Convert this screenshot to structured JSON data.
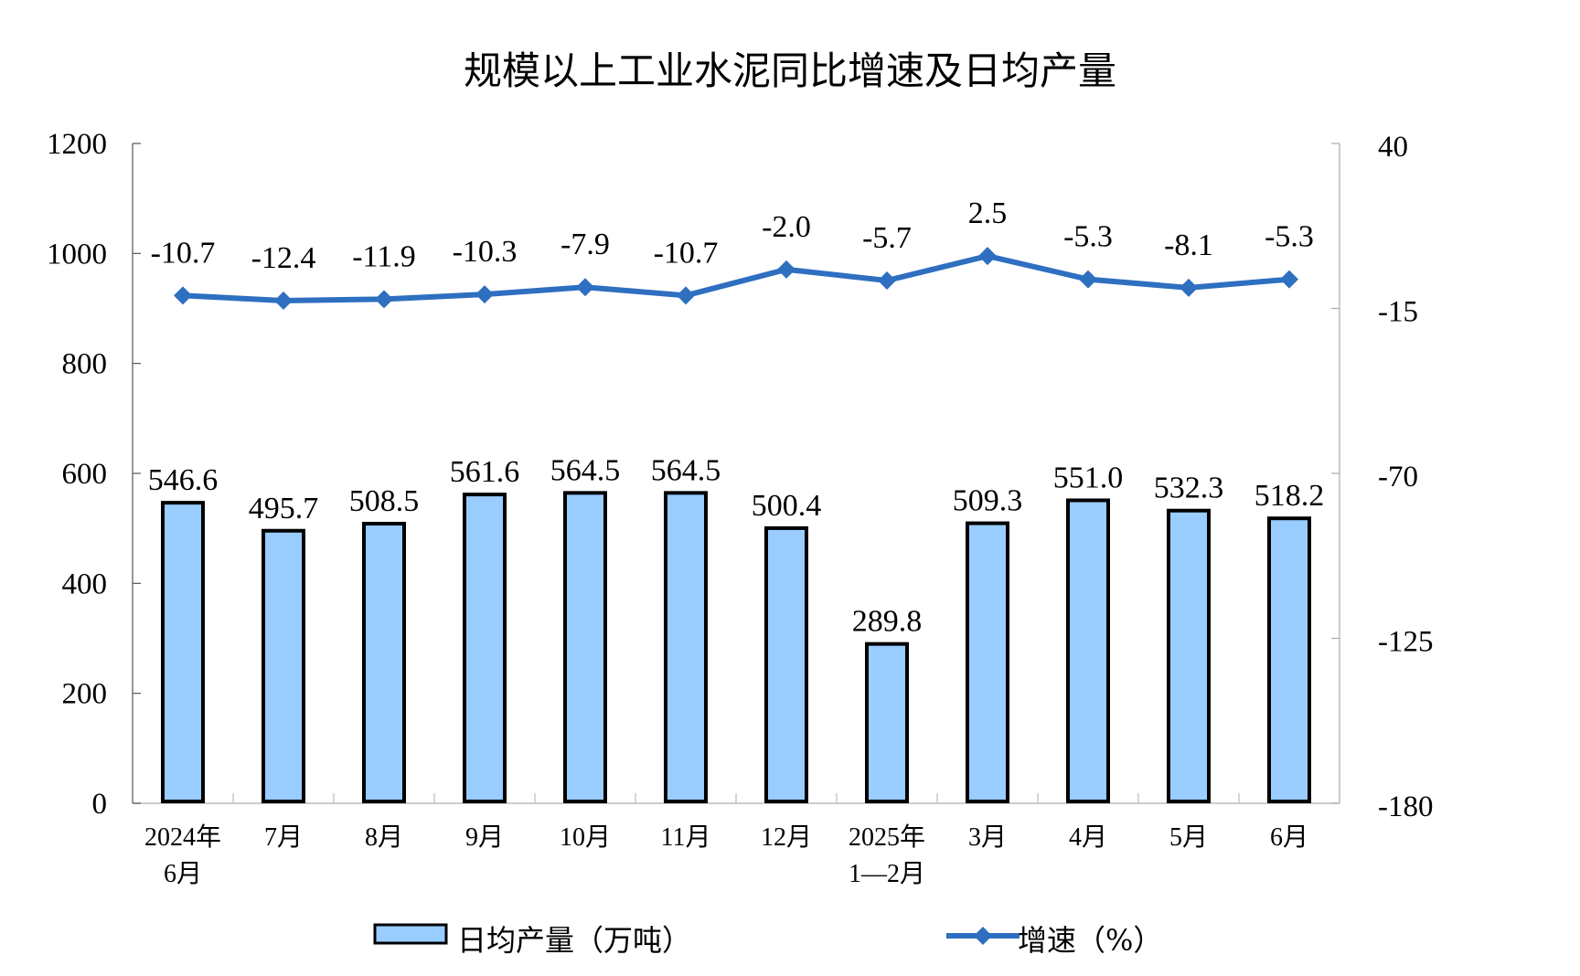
{
  "chart_data": {
    "type": "bar+line",
    "title": "规模以上工业水泥同比增速及日均产量",
    "categories": [
      [
        "2024年",
        "6月"
      ],
      [
        "7月"
      ],
      [
        "8月"
      ],
      [
        "9月"
      ],
      [
        "10月"
      ],
      [
        "11月"
      ],
      [
        "12月"
      ],
      [
        "2025年",
        "1—2月"
      ],
      [
        "3月"
      ],
      [
        "4月"
      ],
      [
        "5月"
      ],
      [
        "6月"
      ]
    ],
    "series": [
      {
        "name": "日均产量（万吨）",
        "type": "bar",
        "axis": "left",
        "color": "#99CCFF",
        "border": "#000000",
        "values": [
          546.6,
          495.7,
          508.5,
          561.6,
          564.5,
          564.5,
          500.4,
          289.8,
          509.3,
          551.0,
          532.3,
          518.2
        ],
        "labels": [
          "546.6",
          "495.7",
          "508.5",
          "561.6",
          "564.5",
          "564.5",
          "500.4",
          "289.8",
          "509.3",
          "551.0",
          "532.3",
          "518.2"
        ]
      },
      {
        "name": "增速（%）",
        "type": "line",
        "axis": "right",
        "color": "#2E6FC0",
        "marker": "diamond",
        "values": [
          -10.7,
          -12.4,
          -11.9,
          -10.3,
          -7.9,
          -10.7,
          -2.0,
          -5.7,
          2.5,
          -5.3,
          -8.1,
          -5.3
        ],
        "labels": [
          "-10.7",
          "-12.4",
          "-11.9",
          "-10.3",
          "-7.9",
          "-10.7",
          "-2.0",
          "-5.7",
          "2.5",
          "-5.3",
          "-8.1",
          "-5.3"
        ]
      }
    ],
    "y_left": {
      "range": [
        0,
        1200
      ],
      "ticks": [
        "0",
        "200",
        "400",
        "600",
        "800",
        "1000",
        "1200"
      ]
    },
    "y_right": {
      "range": [
        -180,
        40
      ],
      "ticks": [
        "-180",
        "-125",
        "-70",
        "-15",
        "40"
      ]
    },
    "grid": false,
    "legend": "bottom"
  }
}
